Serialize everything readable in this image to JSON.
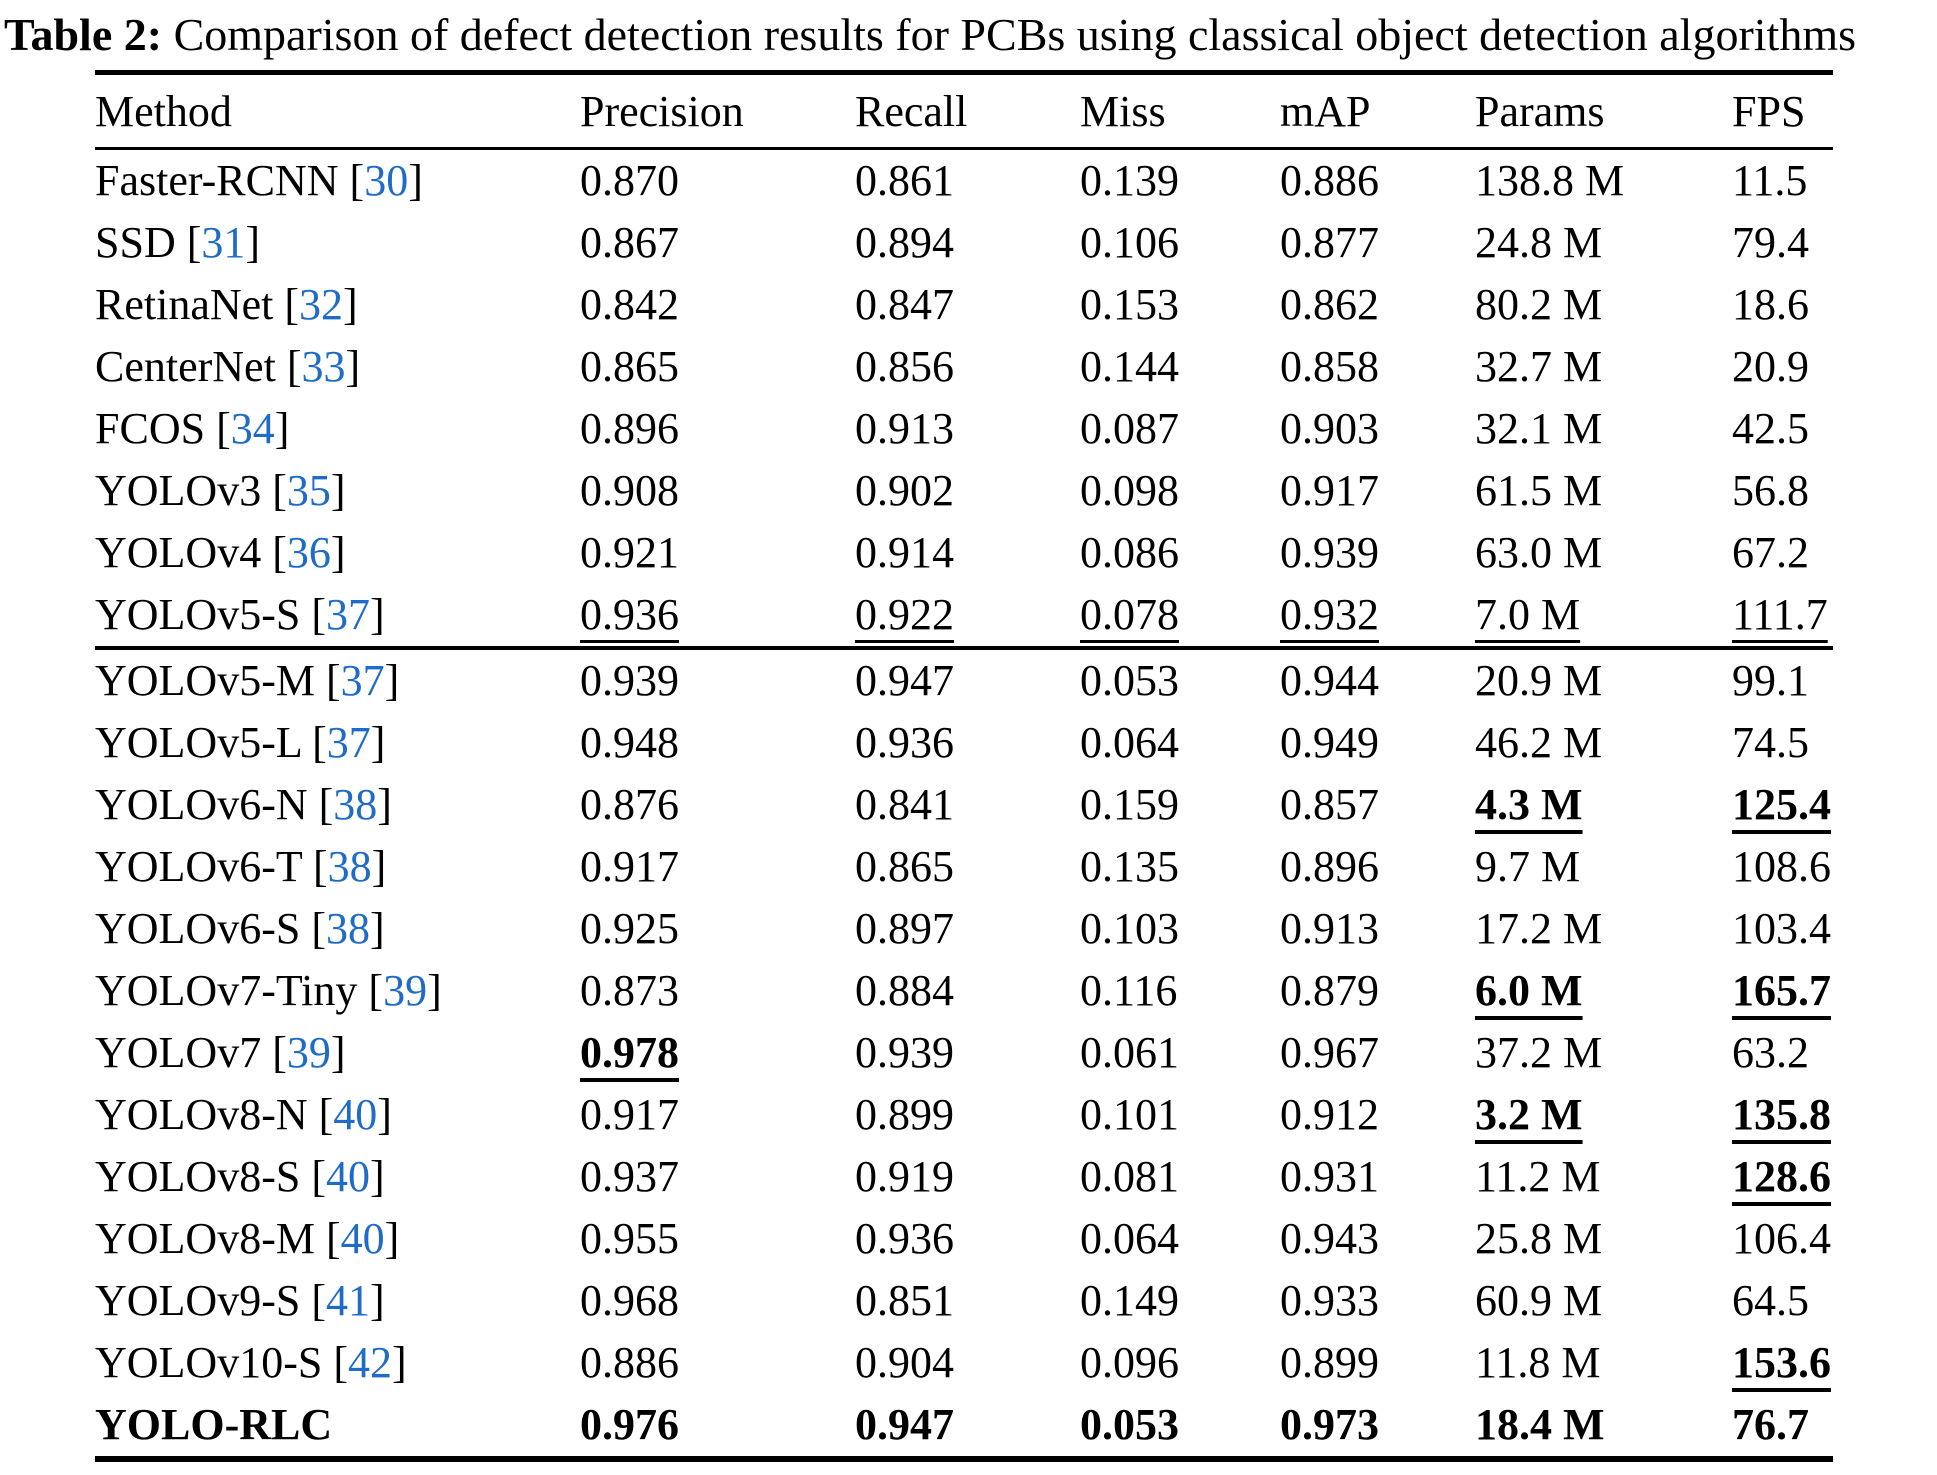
{
  "caption": {
    "label": "Table 2:",
    "text": " Comparison of defect detection results for PCBs using classical object detection algorithms"
  },
  "colors": {
    "citation_blue": "#1e6cc7",
    "text": "#000000"
  },
  "table": {
    "columns": [
      "Method",
      "Precision",
      "Recall",
      "Miss",
      "mAP",
      "Params",
      "FPS"
    ],
    "groups": [
      {
        "rows": [
          {
            "method": "Faster-RCNN",
            "cite": "30",
            "bold": false,
            "cells": [
              "0.870",
              "0.861",
              "0.139",
              "0.886",
              "138.8 M",
              "11.5"
            ],
            "styles": [
              "p",
              "p",
              "p",
              "p",
              "p",
              "p"
            ]
          },
          {
            "method": "SSD",
            "cite": "31",
            "bold": false,
            "cells": [
              "0.867",
              "0.894",
              "0.106",
              "0.877",
              "24.8 M",
              "79.4"
            ],
            "styles": [
              "p",
              "p",
              "p",
              "p",
              "p",
              "p"
            ]
          },
          {
            "method": "RetinaNet",
            "cite": "32",
            "bold": false,
            "cells": [
              "0.842",
              "0.847",
              "0.153",
              "0.862",
              "80.2 M",
              "18.6"
            ],
            "styles": [
              "p",
              "p",
              "p",
              "p",
              "p",
              "p"
            ]
          },
          {
            "method": "CenterNet",
            "cite": "33",
            "bold": false,
            "cells": [
              "0.865",
              "0.856",
              "0.144",
              "0.858",
              "32.7 M",
              "20.9"
            ],
            "styles": [
              "p",
              "p",
              "p",
              "p",
              "p",
              "p"
            ]
          },
          {
            "method": "FCOS",
            "cite": "34",
            "bold": false,
            "cells": [
              "0.896",
              "0.913",
              "0.087",
              "0.903",
              "32.1 M",
              "42.5"
            ],
            "styles": [
              "p",
              "p",
              "p",
              "p",
              "p",
              "p"
            ]
          },
          {
            "method": "YOLOv3",
            "cite": "35",
            "bold": false,
            "cells": [
              "0.908",
              "0.902",
              "0.098",
              "0.917",
              "61.5 M",
              "56.8"
            ],
            "styles": [
              "p",
              "p",
              "p",
              "p",
              "p",
              "p"
            ]
          },
          {
            "method": "YOLOv4",
            "cite": "36",
            "bold": false,
            "cells": [
              "0.921",
              "0.914",
              "0.086",
              "0.939",
              "63.0 M",
              "67.2"
            ],
            "styles": [
              "p",
              "p",
              "p",
              "p",
              "p",
              "p"
            ]
          },
          {
            "method": "YOLOv5-S",
            "cite": "37",
            "bold": false,
            "cells": [
              "0.936",
              "0.922",
              "0.078",
              "0.932",
              "7.0 M",
              "111.7"
            ],
            "styles": [
              "u",
              "u",
              "u",
              "u",
              "u",
              "u"
            ]
          }
        ]
      },
      {
        "rows": [
          {
            "method": "YOLOv5-M",
            "cite": "37",
            "bold": false,
            "cells": [
              "0.939",
              "0.947",
              "0.053",
              "0.944",
              "20.9 M",
              "99.1"
            ],
            "styles": [
              "p",
              "p",
              "p",
              "p",
              "p",
              "p"
            ]
          },
          {
            "method": "YOLOv5-L",
            "cite": "37",
            "bold": false,
            "cells": [
              "0.948",
              "0.936",
              "0.064",
              "0.949",
              "46.2 M",
              "74.5"
            ],
            "styles": [
              "p",
              "p",
              "p",
              "p",
              "p",
              "p"
            ]
          },
          {
            "method": "YOLOv6-N",
            "cite": "38",
            "bold": false,
            "cells": [
              "0.876",
              "0.841",
              "0.159",
              "0.857",
              "4.3 M",
              "125.4"
            ],
            "styles": [
              "p",
              "p",
              "p",
              "p",
              "bu",
              "bu"
            ]
          },
          {
            "method": "YOLOv6-T",
            "cite": "38",
            "bold": false,
            "cells": [
              "0.917",
              "0.865",
              "0.135",
              "0.896",
              "9.7 M",
              "108.6"
            ],
            "styles": [
              "p",
              "p",
              "p",
              "p",
              "p",
              "p"
            ]
          },
          {
            "method": "YOLOv6-S",
            "cite": "38",
            "bold": false,
            "cells": [
              "0.925",
              "0.897",
              "0.103",
              "0.913",
              "17.2 M",
              "103.4"
            ],
            "styles": [
              "p",
              "p",
              "p",
              "p",
              "p",
              "p"
            ]
          },
          {
            "method": "YOLOv7-Tiny",
            "cite": "39",
            "bold": false,
            "cells": [
              "0.873",
              "0.884",
              "0.116",
              "0.879",
              "6.0 M",
              "165.7"
            ],
            "styles": [
              "p",
              "p",
              "p",
              "p",
              "bu",
              "bu"
            ]
          },
          {
            "method": "YOLOv7",
            "cite": "39",
            "bold": false,
            "cells": [
              "0.978",
              "0.939",
              "0.061",
              "0.967",
              "37.2 M",
              "63.2"
            ],
            "styles": [
              "bu",
              "p",
              "p",
              "p",
              "p",
              "p"
            ]
          },
          {
            "method": "YOLOv8-N",
            "cite": "40",
            "bold": false,
            "cells": [
              "0.917",
              "0.899",
              "0.101",
              "0.912",
              "3.2 M",
              "135.8"
            ],
            "styles": [
              "p",
              "p",
              "p",
              "p",
              "bu",
              "bu"
            ]
          },
          {
            "method": "YOLOv8-S",
            "cite": "40",
            "bold": false,
            "cells": [
              "0.937",
              "0.919",
              "0.081",
              "0.931",
              "11.2 M",
              "128.6"
            ],
            "styles": [
              "p",
              "p",
              "p",
              "p",
              "p",
              "bu"
            ]
          },
          {
            "method": "YOLOv8-M",
            "cite": "40",
            "bold": false,
            "cells": [
              "0.955",
              "0.936",
              "0.064",
              "0.943",
              "25.8 M",
              "106.4"
            ],
            "styles": [
              "p",
              "p",
              "p",
              "p",
              "p",
              "p"
            ]
          },
          {
            "method": "YOLOv9-S",
            "cite": "41",
            "bold": false,
            "cells": [
              "0.968",
              "0.851",
              "0.149",
              "0.933",
              "60.9 M",
              "64.5"
            ],
            "styles": [
              "p",
              "p",
              "p",
              "p",
              "p",
              "p"
            ]
          },
          {
            "method": "YOLOv10-S",
            "cite": "42",
            "bold": false,
            "cells": [
              "0.886",
              "0.904",
              "0.096",
              "0.899",
              "11.8 M",
              "153.6"
            ],
            "styles": [
              "p",
              "p",
              "p",
              "p",
              "p",
              "bu"
            ]
          },
          {
            "method": "YOLO-RLC",
            "cite": null,
            "bold": true,
            "cells": [
              "0.976",
              "0.947",
              "0.053",
              "0.973",
              "18.4 M",
              "76.7"
            ],
            "styles": [
              "b",
              "b",
              "b",
              "b",
              "b",
              "b"
            ]
          }
        ]
      }
    ]
  }
}
